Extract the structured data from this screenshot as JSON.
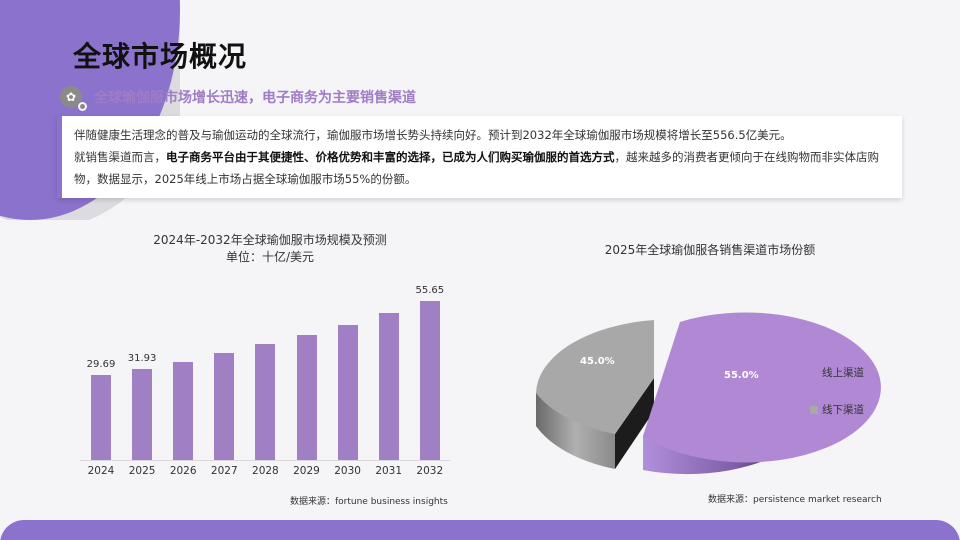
{
  "page": {
    "title": "全球市场概况",
    "subtitle": "全球瑜伽服市场增长迅速，电子商务为主要销售渠道",
    "description": {
      "line1": "伴随健康生活理念的普及与瑜伽运动的全球流行，瑜伽服市场增长势头持续向好。预计到2032年全球瑜伽服市场规模将增长至556.5亿美元。",
      "line2_prefix": "就销售渠道而言，",
      "line2_bold": "电子商务平台由于其便捷性、价格优势和丰富的选择，已成为人们购买瑜伽服的首选方式",
      "line2_suffix": "，越来越多的消费者更倾向于在线购物而非实体店购物，数据显示，2025年线上市场占据全球瑜伽服市场55%的份额。"
    }
  },
  "colors": {
    "accent": "#8b72cd",
    "bar": "#a17fc4",
    "pie_online": "#b088d4",
    "pie_offline": "#a8a8a8",
    "subtitle": "#a07cc5"
  },
  "chart_data": [
    {
      "type": "bar",
      "title": "2024年-2032年全球瑜伽服市场规模及预测",
      "subtitle": "单位：十亿/美元",
      "categories": [
        "2024",
        "2025",
        "2026",
        "2027",
        "2028",
        "2029",
        "2030",
        "2031",
        "2032"
      ],
      "values": [
        29.69,
        31.93,
        34.4,
        37.4,
        40.6,
        43.8,
        47.4,
        51.4,
        55.65
      ],
      "data_labels": [
        "29.69",
        "31.93",
        "",
        "",
        "",
        "",
        "",
        "",
        "55.65"
      ],
      "xlabel": "",
      "ylabel": "",
      "grid": false,
      "source": "数据来源：fortune business insights"
    },
    {
      "type": "pie",
      "title": "2025年全球瑜伽服各销售渠道市场份额",
      "labels": [
        "线上渠道",
        "线下渠道"
      ],
      "values": [
        55.0,
        45.0
      ],
      "data_labels": [
        "55.0%",
        "45.0%"
      ],
      "legend_position": "right",
      "style": "3d-exploded",
      "source": "数据来源：persistence market research"
    }
  ]
}
